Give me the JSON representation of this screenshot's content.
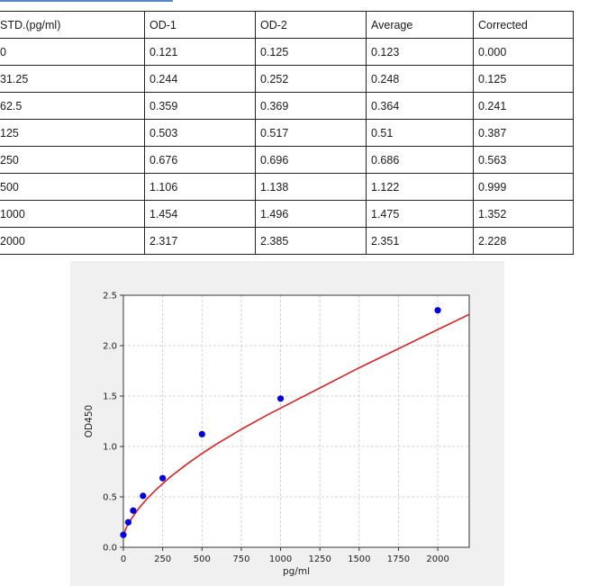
{
  "table": {
    "headers": [
      "STD.(pg/ml)",
      "OD-1",
      "OD-2",
      "Average",
      "Corrected"
    ],
    "rows": [
      [
        "0",
        "0.121",
        "0.125",
        "0.123",
        "0.000"
      ],
      [
        "31.25",
        "0.244",
        "0.252",
        "0.248",
        "0.125"
      ],
      [
        "62.5",
        "0.359",
        "0.369",
        "0.364",
        "0.241"
      ],
      [
        "125",
        "0.503",
        "0.517",
        "0.51",
        "0.387"
      ],
      [
        "250",
        "0.676",
        "0.696",
        "0.686",
        "0.563"
      ],
      [
        "500",
        "1.106",
        "1.138",
        "1.122",
        "0.999"
      ],
      [
        "1000",
        "1.454",
        "1.496",
        "1.475",
        "1.352"
      ],
      [
        "2000",
        "2.317",
        "2.385",
        "2.351",
        "2.228"
      ]
    ]
  },
  "chart_data": {
    "type": "scatter",
    "title": "",
    "xlabel": "pg/ml",
    "ylabel": "OD450",
    "xlim": [
      0,
      2200
    ],
    "ylim": [
      0,
      2.5
    ],
    "xticks": [
      0,
      250,
      500,
      750,
      1000,
      1250,
      1500,
      1750,
      2000
    ],
    "yticks": [
      0.0,
      0.5,
      1.0,
      1.5,
      2.0,
      2.5
    ],
    "ytick_labels": [
      "0.0",
      "0.5",
      "1.0",
      "1.5",
      "2.0",
      "2.5"
    ],
    "grid": true,
    "points": {
      "x": [
        0,
        31.25,
        62.5,
        125,
        250,
        500,
        1000,
        2000
      ],
      "y": [
        0.123,
        0.248,
        0.364,
        0.51,
        0.686,
        1.122,
        1.475,
        2.351
      ]
    },
    "fit_curve": {
      "x": [
        0,
        20,
        50,
        100,
        150,
        200,
        250,
        300,
        400,
        500,
        600,
        750,
        900,
        1000,
        1250,
        1500,
        1750,
        2000,
        2200
      ],
      "y": [
        0.12,
        0.2,
        0.28,
        0.39,
        0.48,
        0.56,
        0.63,
        0.7,
        0.82,
        0.93,
        1.03,
        1.17,
        1.3,
        1.38,
        1.58,
        1.78,
        1.97,
        2.16,
        2.31
      ]
    },
    "colors": {
      "points": "#0000e0",
      "curve": "#dd2222",
      "grid": "#c8c8c8"
    }
  }
}
